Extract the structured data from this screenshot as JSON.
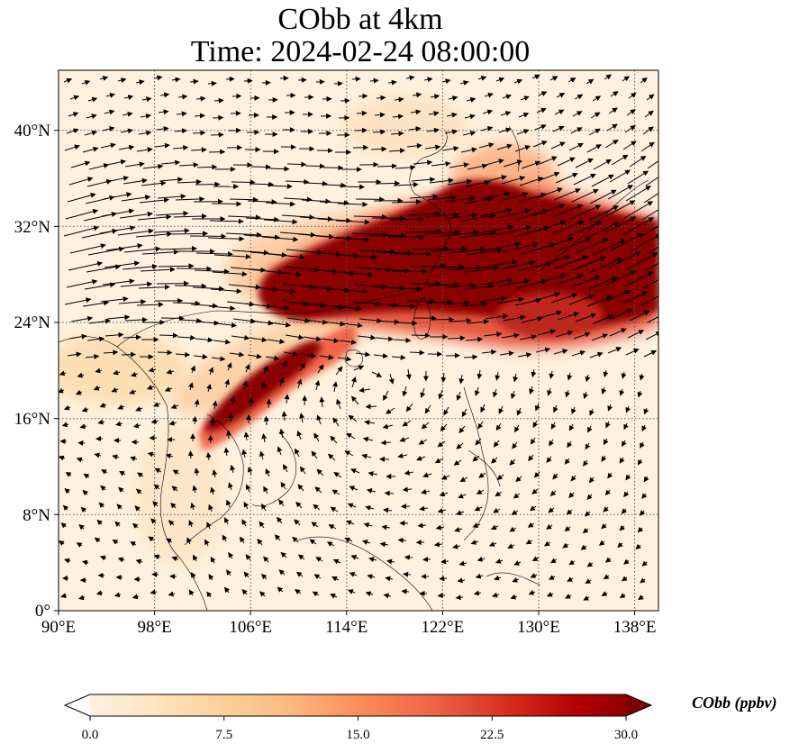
{
  "title": {
    "line1": "CObb at 4km",
    "line2": "Time: 2024-02-24 08:00:00"
  },
  "axes": {
    "x_ticks": [
      "90°E",
      "98°E",
      "106°E",
      "114°E",
      "122°E",
      "130°E",
      "138°E"
    ],
    "y_ticks": [
      "40°N",
      "32°N",
      "24°N",
      "16°N",
      "8°N",
      "0°"
    ],
    "lon_range": [
      90,
      140
    ],
    "lat_range": [
      0,
      45
    ],
    "gridlines": "dotted"
  },
  "colorbar": {
    "label": "CObb (ppbv)",
    "ticks": [
      "0.0",
      "7.5",
      "15.0",
      "22.5",
      "30.0"
    ],
    "range": [
      0,
      30
    ],
    "colormap": "OrRd",
    "extend": "both",
    "colors": [
      "#fff7ec",
      "#fee8c8",
      "#fdd49e",
      "#fdbb84",
      "#fc8d59",
      "#ef6548",
      "#d7301f",
      "#b30000",
      "#7f0000"
    ]
  },
  "layers": {
    "field": "CObb concentration at 4km",
    "vectors": "wind arrows",
    "coastlines": true
  }
}
